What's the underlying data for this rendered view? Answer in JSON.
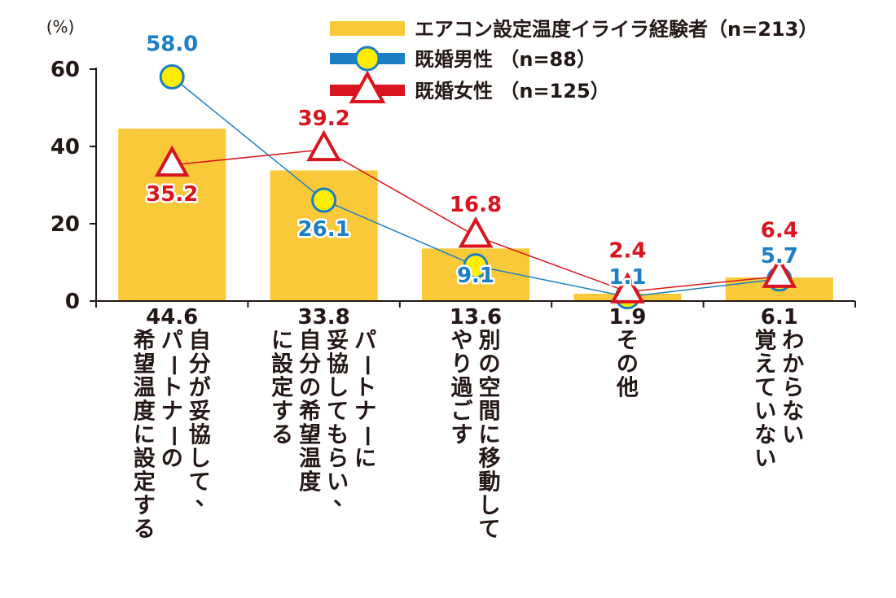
{
  "chart_data": {
    "type": "bar",
    "unit_label": "(%)",
    "ylim": [
      0,
      60
    ],
    "yticks": [
      0,
      20,
      40,
      60
    ],
    "categories": [
      "自分が妥協して、パートナーの希望温度に設定する",
      "パートナーに妥協してもらい、自分の希望温度に設定する",
      "別の空間に移動してやり過ごす",
      "その他",
      "わからない覚えていない"
    ],
    "category_lines": [
      [
        "自分が妥協して、",
        "パートナーの",
        "希望温度に設定する"
      ],
      [
        "パートナーに",
        "妥協してもらい、",
        "自分の希望温度",
        "に設定する"
      ],
      [
        "別の空間に移動して",
        "やり過ごす"
      ],
      [
        "その他"
      ],
      [
        "わからない",
        "覚えていない"
      ]
    ],
    "series": [
      {
        "name": "エアコン設定温度イライラ経験者（n=213）",
        "kind": "bar",
        "values": [
          44.6,
          33.8,
          13.6,
          1.9,
          6.1
        ],
        "color": "#fac93a"
      },
      {
        "name": "既婚男性 （n=88）",
        "kind": "line-circle",
        "values": [
          58.0,
          26.1,
          9.1,
          1.1,
          5.7
        ],
        "color": "#1a7fc4"
      },
      {
        "name": "既婚女性 （n=125）",
        "kind": "line-triangle",
        "values": [
          35.2,
          39.2,
          16.8,
          2.4,
          6.4
        ],
        "color": "#d9141e"
      }
    ],
    "bar_value_labels": [
      "44.6",
      "33.8",
      "13.6",
      "1.9",
      "6.1"
    ],
    "male_value_labels": [
      "58.0",
      "26.1",
      "9.1",
      "1.1",
      "5.7"
    ],
    "female_value_labels": [
      "35.2",
      "39.2",
      "16.8",
      "2.4",
      "6.4"
    ],
    "grid": false,
    "legend_position": "top-right"
  },
  "colors": {
    "bar": "#fac93a",
    "male": "#1a7fc4",
    "female": "#d9141e",
    "marker_fill": "#ffed00",
    "axis": "#231815"
  }
}
